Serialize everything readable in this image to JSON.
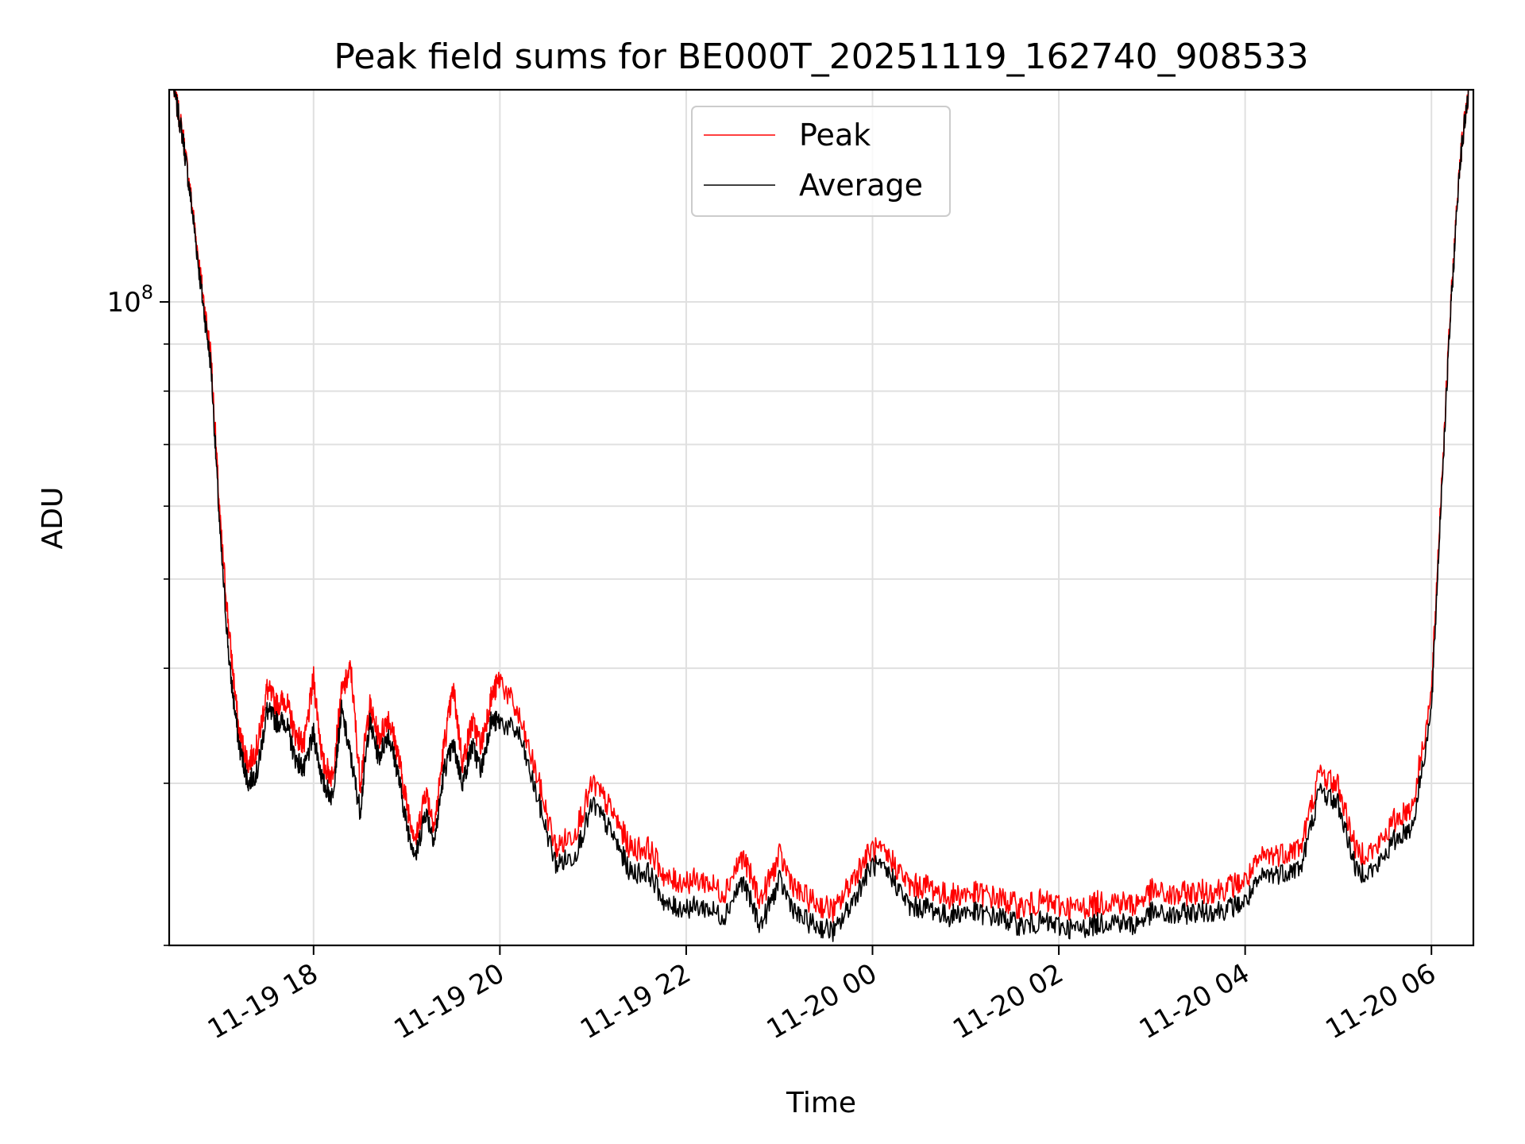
{
  "chart_data": {
    "type": "line",
    "title": "Peak field sums for BE000T_20251119_162740_908533",
    "xlabel": "Time",
    "ylabel": "ADU",
    "yscale": "log",
    "ylim": [
      20000000,
      170000000
    ],
    "xlim_hours": [
      16.45,
      30.45
    ],
    "x_unit": "hours since 2025-11-19 00:00",
    "grid": true,
    "legend_position": "top-center",
    "x_ticks": [
      {
        "hour": 18,
        "label": "11-19 18"
      },
      {
        "hour": 20,
        "label": "11-19 20"
      },
      {
        "hour": 22,
        "label": "11-19 22"
      },
      {
        "hour": 24,
        "label": "11-20 00"
      },
      {
        "hour": 26,
        "label": "11-20 02"
      },
      {
        "hour": 28,
        "label": "11-20 04"
      },
      {
        "hour": 30,
        "label": "11-20 06"
      }
    ],
    "y_major_ticks": [
      {
        "value": 100000000,
        "base": "10",
        "exp": "8"
      }
    ],
    "y_minor_ticks": [
      20000000,
      30000000,
      40000000,
      50000000,
      60000000,
      70000000,
      80000000,
      90000000,
      200000000
    ],
    "series": [
      {
        "name": "Peak",
        "color": "#ff0000"
      },
      {
        "name": "Average",
        "color": "#000000"
      }
    ],
    "x_hours": [
      16.5,
      16.6,
      16.7,
      16.8,
      16.9,
      17.0,
      17.1,
      17.2,
      17.3,
      17.4,
      17.5,
      17.6,
      17.7,
      17.8,
      17.9,
      18.0,
      18.1,
      18.2,
      18.3,
      18.4,
      18.5,
      18.6,
      18.7,
      18.8,
      18.9,
      19.0,
      19.1,
      19.2,
      19.3,
      19.4,
      19.5,
      19.6,
      19.7,
      19.8,
      19.9,
      20.0,
      20.2,
      20.4,
      20.6,
      20.8,
      21.0,
      21.2,
      21.4,
      21.6,
      21.8,
      22.0,
      22.2,
      22.4,
      22.6,
      22.8,
      23.0,
      23.2,
      23.4,
      23.6,
      23.8,
      24.0,
      24.2,
      24.4,
      24.6,
      24.8,
      25.0,
      25.2,
      25.4,
      25.6,
      25.8,
      26.0,
      26.2,
      26.4,
      26.6,
      26.8,
      27.0,
      27.2,
      27.4,
      27.6,
      27.8,
      28.0,
      28.2,
      28.4,
      28.6,
      28.8,
      29.0,
      29.2,
      29.4,
      29.6,
      29.8,
      30.0,
      30.1,
      30.2,
      30.3,
      30.4
    ],
    "average_values": [
      170000000,
      150000000,
      125000000,
      102000000,
      85000000,
      55000000,
      40000000,
      33000000,
      30000000,
      31000000,
      36000000,
      35000000,
      35000000,
      32000000,
      31000000,
      34000000,
      30000000,
      29000000,
      36000000,
      32000000,
      28000000,
      35000000,
      32000000,
      34000000,
      31000000,
      27000000,
      25000000,
      28000000,
      26000000,
      31000000,
      33000000,
      30000000,
      33000000,
      31000000,
      35000000,
      35000000,
      34000000,
      29000000,
      24500000,
      25000000,
      28500000,
      26500000,
      24000000,
      24000000,
      22000000,
      22000000,
      22000000,
      21500000,
      23500000,
      21000000,
      23500000,
      21500000,
      21000000,
      20700000,
      22500000,
      24500000,
      23800000,
      22000000,
      22000000,
      21500000,
      21800000,
      21600000,
      21400000,
      21000000,
      21200000,
      21000000,
      20800000,
      21100000,
      21300000,
      21000000,
      21700000,
      21500000,
      21700000,
      21800000,
      21900000,
      22300000,
      23800000,
      24000000,
      24300000,
      29500000,
      28500000,
      24000000,
      24200000,
      26000000,
      27000000,
      36000000,
      60000000,
      95000000,
      140000000,
      170000000
    ],
    "peak_values": [
      170000000,
      151000000,
      126000000,
      104000000,
      87000000,
      57000000,
      43000000,
      34000000,
      31500000,
      33000000,
      38000000,
      36500000,
      37000000,
      34000000,
      33000000,
      39000000,
      31500000,
      30500000,
      37500000,
      40000000,
      30000000,
      36500000,
      33500000,
      35500000,
      32500000,
      28500000,
      26000000,
      29500000,
      27000000,
      33000000,
      38000000,
      31500000,
      35000000,
      33000000,
      37000000,
      39000000,
      35500000,
      30500000,
      25500000,
      26500000,
      30000000,
      28000000,
      25500000,
      25500000,
      23500000,
      23500000,
      23500000,
      22800000,
      25000000,
      22400000,
      25000000,
      22800000,
      22200000,
      21800000,
      23800000,
      25500000,
      24800000,
      23200000,
      23200000,
      22600000,
      22800000,
      22700000,
      22400000,
      22000000,
      22300000,
      22100000,
      21900000,
      22200000,
      22400000,
      22100000,
      22900000,
      22600000,
      22800000,
      22900000,
      23100000,
      23500000,
      25000000,
      25200000,
      25600000,
      30800000,
      29800000,
      25200000,
      25400000,
      27300000,
      28400000,
      37500000,
      61000000,
      96000000,
      141000000,
      170000000
    ]
  }
}
